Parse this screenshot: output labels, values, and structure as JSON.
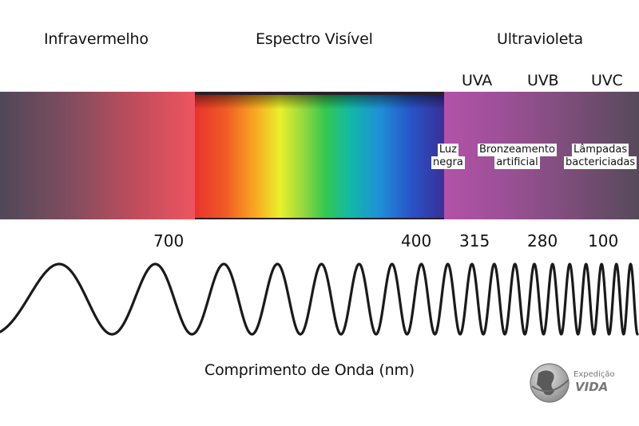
{
  "headers": {
    "infrared": "Infravermelho",
    "visible": "Espectro Visível",
    "ultraviolet": "Ultravioleta"
  },
  "uv_bands": {
    "uva": "UVA",
    "uvb": "UVB",
    "uvc": "UVC"
  },
  "uv_uses": {
    "uva_line1": "Luz",
    "uva_line2": "negra",
    "uvb_line1": "Bronzeamento",
    "uvb_line2": "artificial",
    "uvc_line1": "Lâmpadas",
    "uvc_line2": "bactericiadas"
  },
  "wavelengths": [
    "700",
    "400",
    "315",
    "280",
    "100"
  ],
  "axis_label": "Comprimento de Onda (nm)",
  "logo": {
    "line1": "Expedição",
    "line2": "VIDA"
  },
  "colors": {
    "infrared_band": "#c24d5c",
    "ultraviolet_band": "#9d5097",
    "wave_stroke": "#1a1a1a"
  }
}
